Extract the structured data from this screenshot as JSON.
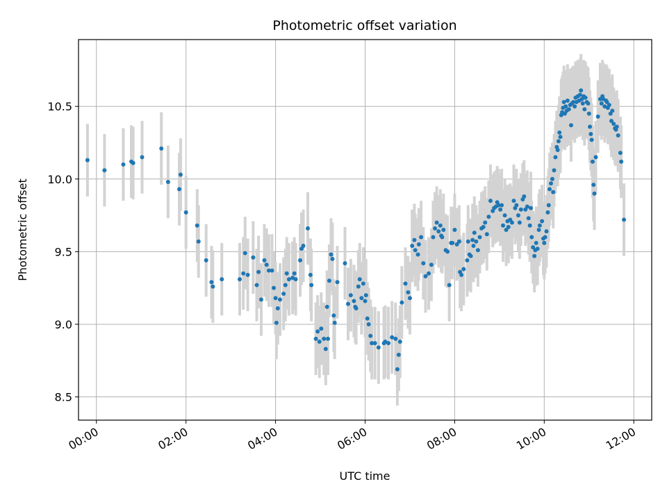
{
  "chart_data": {
    "type": "scatter",
    "title": "Photometric offset variation",
    "xlabel": "UTC time",
    "ylabel": "Photometric offset",
    "x_unit": "hours UTC",
    "xlim": [
      -0.4,
      12.4
    ],
    "ylim": [
      8.34,
      10.96
    ],
    "x_ticks": [
      {
        "value": 0,
        "label": "00:00"
      },
      {
        "value": 2,
        "label": "02:00"
      },
      {
        "value": 4,
        "label": "04:00"
      },
      {
        "value": 6,
        "label": "06:00"
      },
      {
        "value": 8,
        "label": "08:00"
      },
      {
        "value": 10,
        "label": "10:00"
      },
      {
        "value": 12,
        "label": "12:00"
      }
    ],
    "y_ticks": [
      {
        "value": 8.5,
        "label": "8.5"
      },
      {
        "value": 9.0,
        "label": "9.0"
      },
      {
        "value": 9.5,
        "label": "9.5"
      },
      {
        "value": 10.0,
        "label": "10.0"
      },
      {
        "value": 10.5,
        "label": "10.5"
      }
    ],
    "grid": true,
    "colors": {
      "points": "#1f77b4",
      "errorbars": "#d3d3d3",
      "grid": "#b0b0b0"
    },
    "error_sigma": 0.2,
    "series": [
      {
        "points": [
          [
            -0.2,
            10.13
          ],
          [
            0.18,
            10.06
          ],
          [
            0.6,
            10.1
          ],
          [
            0.78,
            10.12
          ],
          [
            0.82,
            10.11
          ],
          [
            1.02,
            10.15
          ],
          [
            1.45,
            10.21
          ],
          [
            1.6,
            9.98
          ],
          [
            1.85,
            9.93
          ],
          [
            1.88,
            10.03
          ],
          [
            2.0,
            9.77
          ],
          [
            2.25,
            9.68
          ],
          [
            2.28,
            9.57
          ],
          [
            2.45,
            9.44
          ],
          [
            2.57,
            9.29
          ],
          [
            2.6,
            9.26
          ],
          [
            2.8,
            9.31
          ],
          [
            3.2,
            9.31
          ],
          [
            3.28,
            9.35
          ],
          [
            3.32,
            9.49
          ],
          [
            3.38,
            9.34
          ],
          [
            3.5,
            9.46
          ],
          [
            3.58,
            9.27
          ],
          [
            3.62,
            9.36
          ],
          [
            3.68,
            9.17
          ],
          [
            3.75,
            9.44
          ],
          [
            3.8,
            9.41
          ],
          [
            3.85,
            9.37
          ],
          [
            3.92,
            9.37
          ],
          [
            3.96,
            9.25
          ],
          [
            4.0,
            9.18
          ],
          [
            4.02,
            9.01
          ],
          [
            4.05,
            9.11
          ],
          [
            4.1,
            9.17
          ],
          [
            4.18,
            9.21
          ],
          [
            4.22,
            9.27
          ],
          [
            4.25,
            9.35
          ],
          [
            4.3,
            9.31
          ],
          [
            4.38,
            9.32
          ],
          [
            4.42,
            9.35
          ],
          [
            4.45,
            9.31
          ],
          [
            4.55,
            9.44
          ],
          [
            4.58,
            9.52
          ],
          [
            4.62,
            9.54
          ],
          [
            4.72,
            9.66
          ],
          [
            4.78,
            9.34
          ],
          [
            4.8,
            9.27
          ],
          [
            4.9,
            8.9
          ],
          [
            4.94,
            8.95
          ],
          [
            4.98,
            8.88
          ],
          [
            5.02,
            8.97
          ],
          [
            5.08,
            8.9
          ],
          [
            5.12,
            8.83
          ],
          [
            5.15,
            9.12
          ],
          [
            5.17,
            8.9
          ],
          [
            5.2,
            9.3
          ],
          [
            5.24,
            9.48
          ],
          [
            5.27,
            9.45
          ],
          [
            5.3,
            9.06
          ],
          [
            5.32,
            9.01
          ],
          [
            5.38,
            9.29
          ],
          [
            5.55,
            9.42
          ],
          [
            5.62,
            9.14
          ],
          [
            5.68,
            9.2
          ],
          [
            5.75,
            9.16
          ],
          [
            5.78,
            9.12
          ],
          [
            5.8,
            9.11
          ],
          [
            5.85,
            9.26
          ],
          [
            5.88,
            9.31
          ],
          [
            5.92,
            9.18
          ],
          [
            5.96,
            9.28
          ],
          [
            6.0,
            9.16
          ],
          [
            6.02,
            9.2
          ],
          [
            6.05,
            9.04
          ],
          [
            6.08,
            9.0
          ],
          [
            6.12,
            8.92
          ],
          [
            6.15,
            8.87
          ],
          [
            6.22,
            8.87
          ],
          [
            6.3,
            8.84
          ],
          [
            6.42,
            8.87
          ],
          [
            6.45,
            8.88
          ],
          [
            6.52,
            8.87
          ],
          [
            6.6,
            8.91
          ],
          [
            6.68,
            8.9
          ],
          [
            6.72,
            8.69
          ],
          [
            6.75,
            8.79
          ],
          [
            6.78,
            8.88
          ],
          [
            6.82,
            9.15
          ],
          [
            6.9,
            9.28
          ],
          [
            6.96,
            9.22
          ],
          [
            7.0,
            9.18
          ],
          [
            7.05,
            9.54
          ],
          [
            7.1,
            9.58
          ],
          [
            7.12,
            9.51
          ],
          [
            7.18,
            9.48
          ],
          [
            7.2,
            9.55
          ],
          [
            7.25,
            9.6
          ],
          [
            7.3,
            9.42
          ],
          [
            7.35,
            9.33
          ],
          [
            7.42,
            9.35
          ],
          [
            7.48,
            9.41
          ],
          [
            7.52,
            9.6
          ],
          [
            7.56,
            9.66
          ],
          [
            7.6,
            9.7
          ],
          [
            7.64,
            9.64
          ],
          [
            7.68,
            9.68
          ],
          [
            7.7,
            9.61
          ],
          [
            7.72,
            9.6
          ],
          [
            7.75,
            9.65
          ],
          [
            7.8,
            9.51
          ],
          [
            7.84,
            9.5
          ],
          [
            7.88,
            9.27
          ],
          [
            7.92,
            9.56
          ],
          [
            7.95,
            9.56
          ],
          [
            8.0,
            9.65
          ],
          [
            8.05,
            9.55
          ],
          [
            8.1,
            9.57
          ],
          [
            8.12,
            9.36
          ],
          [
            8.15,
            9.34
          ],
          [
            8.2,
            9.38
          ],
          [
            8.28,
            9.44
          ],
          [
            8.3,
            9.57
          ],
          [
            8.33,
            9.48
          ],
          [
            8.36,
            9.47
          ],
          [
            8.4,
            9.58
          ],
          [
            8.42,
            9.54
          ],
          [
            8.44,
            9.63
          ],
          [
            8.48,
            9.57
          ],
          [
            8.52,
            9.51
          ],
          [
            8.56,
            9.6
          ],
          [
            8.6,
            9.66
          ],
          [
            8.64,
            9.67
          ],
          [
            8.68,
            9.7
          ],
          [
            8.72,
            9.62
          ],
          [
            8.76,
            9.74
          ],
          [
            8.8,
            9.85
          ],
          [
            8.85,
            9.78
          ],
          [
            8.88,
            9.8
          ],
          [
            8.92,
            9.81
          ],
          [
            8.95,
            9.84
          ],
          [
            8.98,
            9.82
          ],
          [
            9.02,
            9.79
          ],
          [
            9.05,
            9.82
          ],
          [
            9.08,
            9.68
          ],
          [
            9.12,
            9.75
          ],
          [
            9.15,
            9.65
          ],
          [
            9.18,
            9.71
          ],
          [
            9.2,
            9.67
          ],
          [
            9.24,
            9.72
          ],
          [
            9.28,
            9.7
          ],
          [
            9.32,
            9.85
          ],
          [
            9.35,
            9.8
          ],
          [
            9.38,
            9.82
          ],
          [
            9.42,
            9.75
          ],
          [
            9.45,
            9.7
          ],
          [
            9.48,
            9.79
          ],
          [
            9.52,
            9.86
          ],
          [
            9.55,
            9.88
          ],
          [
            9.58,
            9.79
          ],
          [
            9.62,
            9.81
          ],
          [
            9.65,
            9.73
          ],
          [
            9.68,
            9.68
          ],
          [
            9.7,
            9.8
          ],
          [
            9.72,
            9.6
          ],
          [
            9.75,
            9.53
          ],
          [
            9.78,
            9.47
          ],
          [
            9.8,
            9.51
          ],
          [
            9.82,
            9.56
          ],
          [
            9.85,
            9.52
          ],
          [
            9.88,
            9.65
          ],
          [
            9.9,
            9.68
          ],
          [
            9.95,
            9.71
          ],
          [
            9.98,
            9.59
          ],
          [
            10.0,
            9.56
          ],
          [
            10.02,
            9.6
          ],
          [
            10.05,
            9.64
          ],
          [
            10.08,
            9.77
          ],
          [
            10.1,
            9.82
          ],
          [
            10.12,
            9.93
          ],
          [
            10.15,
            9.97
          ],
          [
            10.18,
            10.0
          ],
          [
            10.2,
            9.91
          ],
          [
            10.22,
            10.06
          ],
          [
            10.25,
            10.15
          ],
          [
            10.28,
            10.22
          ],
          [
            10.3,
            10.2
          ],
          [
            10.32,
            10.26
          ],
          [
            10.34,
            10.32
          ],
          [
            10.36,
            10.29
          ],
          [
            10.38,
            10.44
          ],
          [
            10.4,
            10.46
          ],
          [
            10.42,
            10.49
          ],
          [
            10.44,
            10.53
          ],
          [
            10.46,
            10.45
          ],
          [
            10.48,
            10.5
          ],
          [
            10.5,
            10.47
          ],
          [
            10.52,
            10.54
          ],
          [
            10.55,
            10.48
          ],
          [
            10.58,
            10.51
          ],
          [
            10.6,
            10.37
          ],
          [
            10.62,
            10.52
          ],
          [
            10.65,
            10.53
          ],
          [
            10.68,
            10.5
          ],
          [
            10.7,
            10.56
          ],
          [
            10.72,
            10.53
          ],
          [
            10.75,
            10.57
          ],
          [
            10.78,
            10.54
          ],
          [
            10.8,
            10.58
          ],
          [
            10.82,
            10.61
          ],
          [
            10.84,
            10.55
          ],
          [
            10.86,
            10.52
          ],
          [
            10.88,
            10.57
          ],
          [
            10.9,
            10.48
          ],
          [
            10.92,
            10.56
          ],
          [
            10.95,
            10.53
          ],
          [
            10.98,
            10.52
          ],
          [
            11.0,
            10.45
          ],
          [
            11.02,
            10.36
          ],
          [
            11.04,
            10.31
          ],
          [
            11.06,
            10.27
          ],
          [
            11.08,
            10.12
          ],
          [
            11.1,
            9.96
          ],
          [
            11.12,
            9.9
          ],
          [
            11.15,
            10.15
          ],
          [
            11.2,
            10.43
          ],
          [
            11.25,
            10.55
          ],
          [
            11.28,
            10.52
          ],
          [
            11.3,
            10.57
          ],
          [
            11.32,
            10.55
          ],
          [
            11.35,
            10.5
          ],
          [
            11.38,
            10.54
          ],
          [
            11.4,
            10.53
          ],
          [
            11.42,
            10.49
          ],
          [
            11.45,
            10.51
          ],
          [
            11.48,
            10.45
          ],
          [
            11.5,
            10.4
          ],
          [
            11.52,
            10.47
          ],
          [
            11.55,
            10.38
          ],
          [
            11.58,
            10.35
          ],
          [
            11.6,
            10.34
          ],
          [
            11.62,
            10.36
          ],
          [
            11.65,
            10.3
          ],
          [
            11.7,
            10.18
          ],
          [
            11.72,
            10.12
          ],
          [
            11.78,
            9.72
          ]
        ]
      }
    ]
  }
}
